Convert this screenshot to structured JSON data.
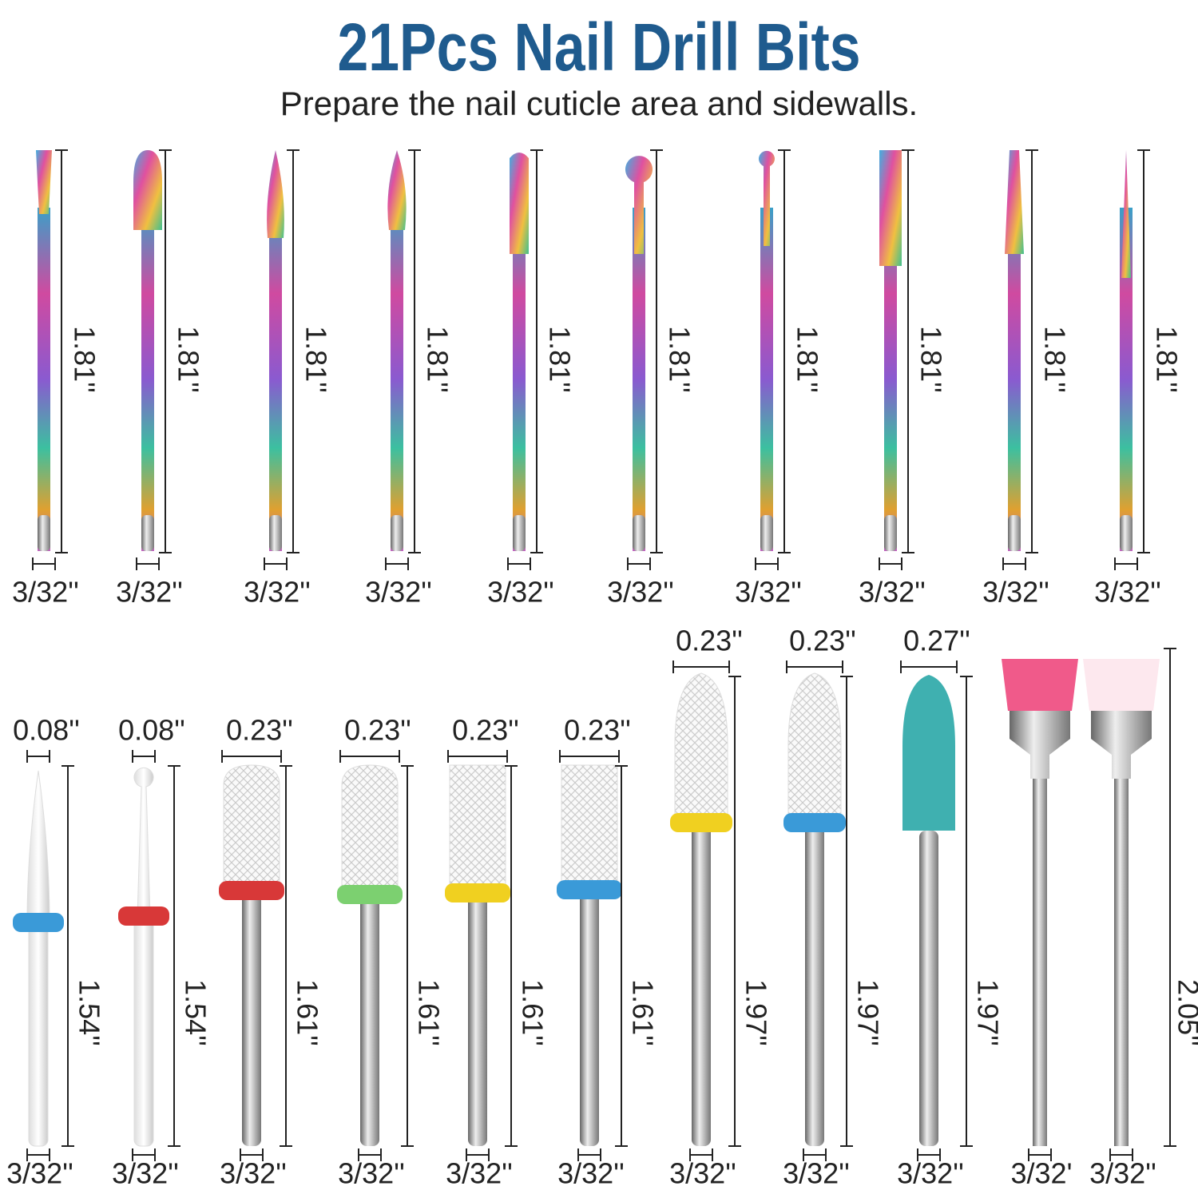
{
  "header": {
    "title": "21Pcs Nail Drill Bits",
    "subtitle": "Prepare the nail cuticle area and sidewalls."
  },
  "top_row": [
    {
      "length": "1.81''",
      "shank": "3/32''"
    },
    {
      "length": "1.81''",
      "shank": "3/32''"
    },
    {
      "length": "1.81''",
      "shank": "3/32''"
    },
    {
      "length": "1.81''",
      "shank": "3/32''"
    },
    {
      "length": "1.81''",
      "shank": "3/32''"
    },
    {
      "length": "1.81''",
      "shank": "3/32''"
    },
    {
      "length": "1.81''",
      "shank": "3/32''"
    },
    {
      "length": "1.81''",
      "shank": "3/32''"
    },
    {
      "length": "1.81''",
      "shank": "3/32''"
    },
    {
      "length": "1.81''",
      "shank": "3/32''"
    }
  ],
  "bottom_row": [
    {
      "head": "0.08''",
      "length": "1.54''",
      "shank": "3/32''"
    },
    {
      "head": "0.08''",
      "length": "1.54''",
      "shank": "3/32''"
    },
    {
      "head": "0.23''",
      "length": "1.61''",
      "shank": "3/32''"
    },
    {
      "head": "0.23''",
      "length": "1.61''",
      "shank": "3/32''"
    },
    {
      "head": "0.23''",
      "length": "1.61''",
      "shank": "3/32''"
    },
    {
      "head": "0.23''",
      "length": "1.61''",
      "shank": "3/32''"
    },
    {
      "head": "0.23''",
      "length": "1.97''",
      "shank": "3/32''"
    },
    {
      "head": "0.23''",
      "length": "1.97''",
      "shank": "3/32''"
    },
    {
      "head": "0.27''",
      "length": "1.97''",
      "shank": "3/32''"
    }
  ],
  "brushes": {
    "length": "2.05''",
    "shanks": [
      "3/32'",
      "3/32''"
    ]
  }
}
